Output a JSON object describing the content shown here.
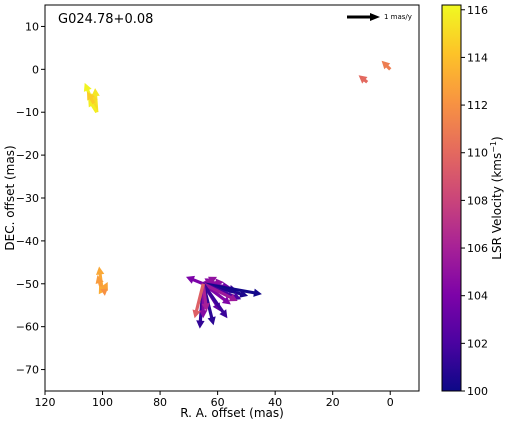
{
  "chart_data": {
    "type": "scatter",
    "title": "G024.78+0.08",
    "xlabel": "R. A. offset (mas)",
    "ylabel": "DEC. offset (mas)",
    "xlim": [
      120,
      -10
    ],
    "ylim": [
      -75,
      15
    ],
    "x_inverted": true,
    "x_ticks": [
      "120",
      "100",
      "80",
      "60",
      "40",
      "20",
      "0"
    ],
    "x_tick_values": [
      120,
      100,
      80,
      60,
      40,
      20,
      0
    ],
    "y_ticks": [
      "10",
      "0",
      "−10",
      "−20",
      "−30",
      "−40",
      "−50",
      "−60",
      "−70"
    ],
    "y_tick_values": [
      10,
      0,
      -10,
      -20,
      -30,
      -40,
      -50,
      -60,
      -70
    ],
    "reference_arrow": {
      "label": "1 mas/y",
      "position": "top-right",
      "length_mas_per_yr": 1
    },
    "colorbar": {
      "label": "LSR Velocity (kms",
      "label_sup": "−1",
      "label_close": ")",
      "min": 100,
      "max": 116.2,
      "ticks": [
        "100",
        "102",
        "104",
        "106",
        "108",
        "110",
        "112",
        "114",
        "116"
      ],
      "tick_values": [
        100,
        102,
        104,
        106,
        108,
        110,
        112,
        114,
        116
      ],
      "colormap": "plasma"
    },
    "vectors": [
      {
        "x": 102,
        "y": -10,
        "dx": 3.5,
        "dy": 8.5,
        "v": 116
      },
      {
        "x": 102,
        "y": -10,
        "dx": 0.5,
        "dy": 7.0,
        "v": 115.5
      },
      {
        "x": 102,
        "y": -10,
        "dx": 1.5,
        "dy": 5.5,
        "v": 115
      },
      {
        "x": 102,
        "y": -10,
        "dx": 2.5,
        "dy": 4.0,
        "v": 115.8
      },
      {
        "x": 103,
        "y": -8,
        "dx": 2.0,
        "dy": 3.5,
        "v": 114.5
      },
      {
        "x": 8,
        "y": -3,
        "dx": 2.5,
        "dy": 2.0,
        "v": 110
      },
      {
        "x": 0,
        "y": 0,
        "dx": 2.5,
        "dy": 2.5,
        "v": 111
      },
      {
        "x": 100,
        "y": -52,
        "dx": 1.0,
        "dy": 7.5,
        "v": 113
      },
      {
        "x": 100,
        "y": -52,
        "dx": 1.5,
        "dy": 5.0,
        "v": 112.5
      },
      {
        "x": 100,
        "y": -52,
        "dx": -1.5,
        "dy": 3.0,
        "v": 112.8
      },
      {
        "x": 100,
        "y": -52,
        "dx": 1.0,
        "dy": 2.0,
        "v": 113.2
      },
      {
        "x": 100,
        "y": -52,
        "dx": -1.5,
        "dy": 1.0,
        "v": 112
      },
      {
        "x": 65,
        "y": -50,
        "dx": 5.0,
        "dy": 2.0,
        "v": 104
      },
      {
        "x": 65,
        "y": -50,
        "dx": -3.0,
        "dy": 1.5,
        "v": 104.5
      },
      {
        "x": 65,
        "y": -50,
        "dx": -4.0,
        "dy": 2.0,
        "v": 105
      },
      {
        "x": 65,
        "y": -50,
        "dx": -6.0,
        "dy": 0.5,
        "v": 104.8
      },
      {
        "x": 65,
        "y": -50,
        "dx": -8.0,
        "dy": -1.0,
        "v": 103.5
      },
      {
        "x": 65,
        "y": -50,
        "dx": -10.0,
        "dy": -2.0,
        "v": 101.5
      },
      {
        "x": 65,
        "y": -50,
        "dx": -17.0,
        "dy": -3.0,
        "v": 100.2
      },
      {
        "x": 65,
        "y": -50,
        "dx": -13.0,
        "dy": -3.5,
        "v": 100.5
      },
      {
        "x": 65,
        "y": -50,
        "dx": -11.0,
        "dy": -4.5,
        "v": 102.0
      },
      {
        "x": 65,
        "y": -50,
        "dx": -8.0,
        "dy": -6.0,
        "v": 104.2
      },
      {
        "x": 65,
        "y": -50,
        "dx": -10.0,
        "dy": -5.0,
        "v": 105.5
      },
      {
        "x": 65,
        "y": -50,
        "dx": -5.0,
        "dy": -8.0,
        "v": 103.0
      },
      {
        "x": 65,
        "y": -50,
        "dx": -7.0,
        "dy": -10.0,
        "v": 101.5
      },
      {
        "x": 65,
        "y": -50,
        "dx": -3.0,
        "dy": -12.0,
        "v": 101.0
      },
      {
        "x": 65,
        "y": -50,
        "dx": 1.0,
        "dy": -13.0,
        "v": 101.2
      },
      {
        "x": 65,
        "y": -50,
        "dx": 0.0,
        "dy": -10.0,
        "v": 104.5
      },
      {
        "x": 65,
        "y": -50,
        "dx": -1.0,
        "dy": -8.0,
        "v": 106.0
      },
      {
        "x": 65,
        "y": -50,
        "dx": 2.5,
        "dy": -10.0,
        "v": 109.5
      }
    ]
  }
}
